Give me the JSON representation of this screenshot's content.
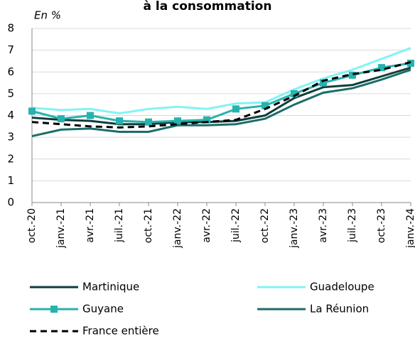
{
  "chart_data": {
    "type": "line",
    "title": "à la consommation",
    "y_label": "En %",
    "categories": [
      "oct.-20",
      "janv.-21",
      "avr.-21",
      "juil.-21",
      "oct.-21",
      "janv.-22",
      "avr.-22",
      "juil.-22",
      "oct.-22",
      "janv.-23",
      "avr.-23",
      "juil.-23",
      "oct.-23",
      "janv.-24"
    ],
    "series": [
      {
        "name": "Martinique",
        "color": "#0e3d3b",
        "values": [
          3.9,
          3.8,
          3.75,
          3.6,
          3.6,
          3.7,
          3.7,
          3.75,
          4.0,
          4.8,
          5.3,
          5.4,
          5.8,
          6.2
        ]
      },
      {
        "name": "Guadeloupe",
        "color": "#80f4f4",
        "values": [
          4.35,
          4.25,
          4.3,
          4.1,
          4.3,
          4.4,
          4.3,
          4.55,
          4.6,
          5.2,
          5.7,
          6.1,
          6.6,
          7.1
        ]
      },
      {
        "name": "Guyane",
        "color": "#27b2ae",
        "marker": "square",
        "values": [
          4.2,
          3.85,
          4.0,
          3.75,
          3.7,
          3.75,
          3.8,
          4.3,
          4.45,
          5.0,
          5.5,
          5.85,
          6.2,
          6.4
        ]
      },
      {
        "name": "La Réunion",
        "color": "#1b6d6a",
        "values": [
          3.05,
          3.35,
          3.4,
          3.25,
          3.25,
          3.55,
          3.55,
          3.6,
          3.85,
          4.5,
          5.05,
          5.25,
          5.65,
          6.1
        ]
      },
      {
        "name": "France entière",
        "color": "#000000",
        "dashed": true,
        "values": [
          3.7,
          3.6,
          3.5,
          3.45,
          3.5,
          3.6,
          3.7,
          3.8,
          4.3,
          4.9,
          5.6,
          5.9,
          6.1,
          6.45
        ]
      }
    ],
    "ylim": [
      0,
      8
    ],
    "yticks": [
      0,
      1,
      2,
      3,
      4,
      5,
      6,
      7,
      8
    ],
    "grid": true
  }
}
